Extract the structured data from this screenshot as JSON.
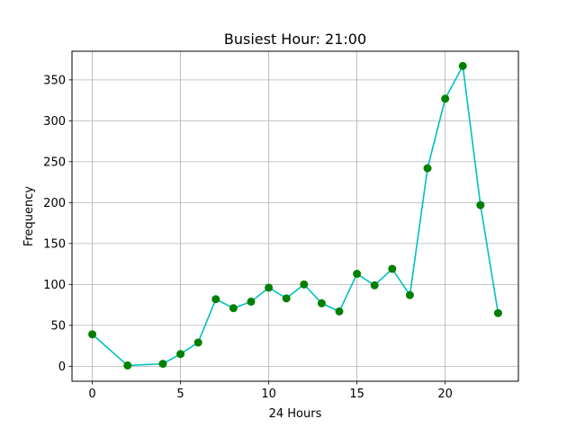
{
  "chart_data": {
    "type": "line",
    "title": "Busiest Hour: 21:00",
    "xlabel": "24 Hours",
    "ylabel": "Frequency",
    "xlim": [
      -1.15,
      24.15
    ],
    "ylim": [
      -18.3,
      385
    ],
    "xticks": [
      0,
      5,
      10,
      15,
      20
    ],
    "yticks": [
      0,
      50,
      100,
      150,
      200,
      250,
      300,
      350
    ],
    "grid": true,
    "line_color": "#00bfbf",
    "marker_color": "#008000",
    "x": [
      0,
      2,
      4,
      5,
      6,
      7,
      8,
      9,
      10,
      11,
      12,
      13,
      14,
      15,
      16,
      17,
      18,
      19,
      20,
      21,
      22,
      23
    ],
    "y": [
      39,
      1,
      3,
      15,
      29,
      82,
      71,
      79,
      96,
      83,
      100,
      77,
      67,
      113,
      99,
      119,
      87,
      242,
      327,
      367,
      197,
      65
    ]
  }
}
